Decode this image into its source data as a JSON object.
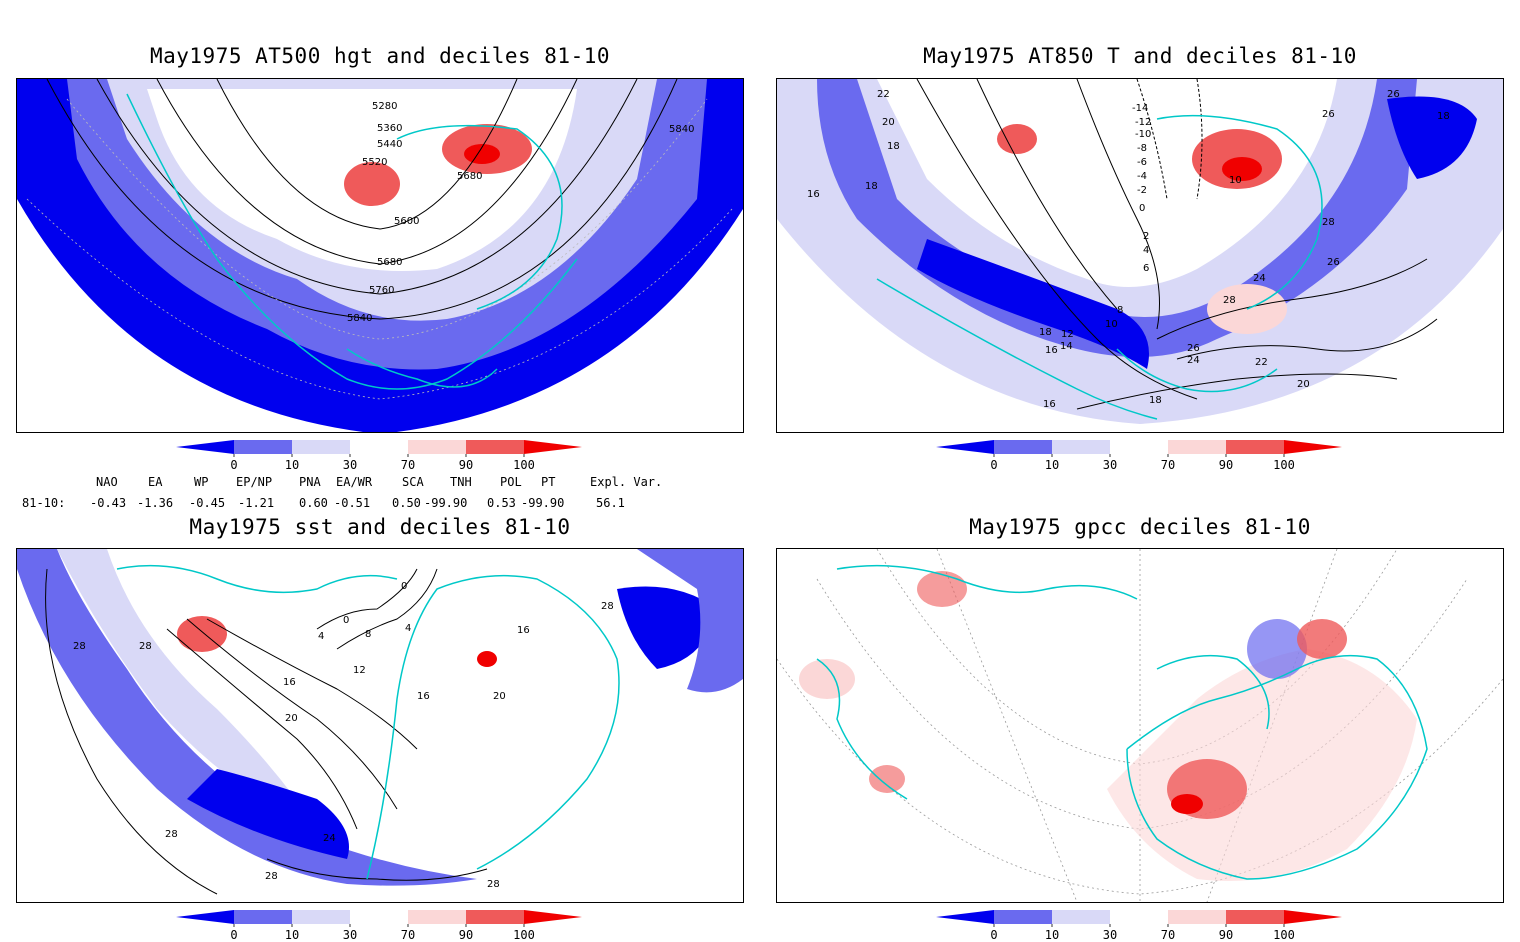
{
  "panels": [
    {
      "title": "May1975 AT500 hgt and deciles 81-10",
      "contour_labels": [
        "5280",
        "5360",
        "5440",
        "5520",
        "5600",
        "5680",
        "5760",
        "5840",
        "5680",
        "5840"
      ]
    },
    {
      "title": "May1975 AT850 T and deciles 81-10",
      "contour_labels": [
        "22",
        "20",
        "18",
        "18",
        "16",
        "-14",
        "-12",
        "-10",
        "-8",
        "-6",
        "-4",
        "-2",
        "0",
        "2",
        "4",
        "6",
        "8",
        "10",
        "12",
        "14",
        "16",
        "18",
        "10",
        "26",
        "26",
        "18",
        "28",
        "24",
        "26",
        "28",
        "26",
        "24",
        "22",
        "20",
        "18",
        "16"
      ]
    },
    {
      "title": "May1975 sst and deciles 81-10",
      "contour_labels": [
        "28",
        "28",
        "0",
        "0",
        "4",
        "4",
        "8",
        "12",
        "16",
        "20",
        "16",
        "20",
        "16",
        "28",
        "24",
        "28",
        "28",
        "28"
      ]
    },
    {
      "title": "May1975 gpcc deciles 81-10",
      "contour_labels": []
    }
  ],
  "colorbar": {
    "labels": [
      "0",
      "10",
      "30",
      "70",
      "90",
      "100"
    ],
    "colors": [
      "#0000ee",
      "#6a6aef",
      "#d9d9f7",
      "#ffffff",
      "#fbd7d7",
      "#ef5a5a",
      "#f00000"
    ]
  },
  "indices": {
    "headers": [
      "NAO",
      "EA",
      "WP",
      "EP/NP",
      "PNA",
      "EA/WR",
      "SCA",
      "TNH",
      "POL",
      "PT",
      "Expl. Var."
    ],
    "row_label": "81-10:",
    "values": [
      "-0.43",
      "-1.36",
      "-0.45",
      "-1.21",
      "0.60",
      "-0.51",
      "0.50",
      "-99.90",
      "0.53",
      "-99.90",
      "56.1"
    ]
  },
  "map_colors": {
    "coast": "#00c8c8",
    "contour": "#000000",
    "grid": "#9a9a9a"
  }
}
